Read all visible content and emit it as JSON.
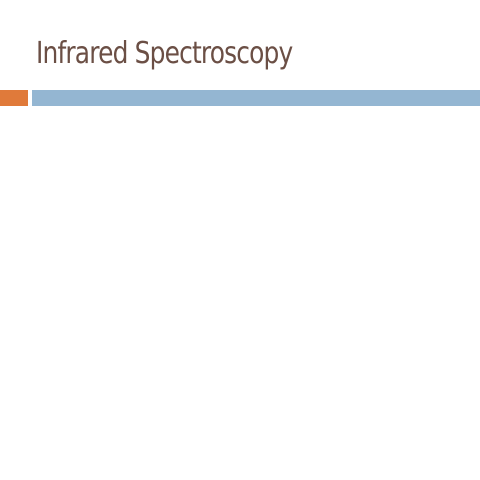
{
  "slide": {
    "title": "Infrared Spectroscopy"
  },
  "colors": {
    "title_text": "#6b4f45",
    "accent_orange": "#e07a3a",
    "accent_blue": "#94b6d2",
    "background": "#ffffff"
  }
}
